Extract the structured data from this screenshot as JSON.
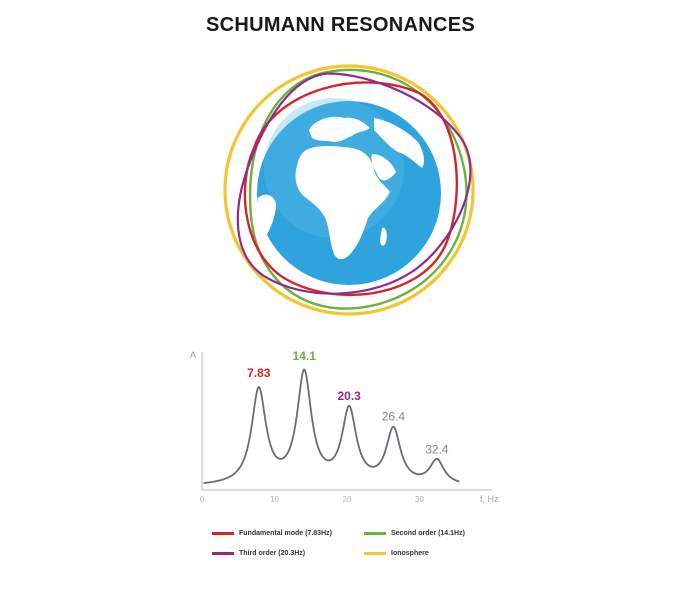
{
  "title": "SCHUMANN RESONANCES",
  "colors": {
    "fundamental": "#d6232a",
    "second": "#6ab23e",
    "third": "#8e2b8e",
    "ionosphere": "#f2c531",
    "ocean": "#2fa3dd",
    "land": "#ffffff",
    "curve": "#666e73",
    "axis": "#b9bec2"
  },
  "chart_data": {
    "type": "line",
    "xlabel": "f, Hz",
    "ylabel": "A",
    "xlim": [
      0,
      40
    ],
    "x_ticks": [
      0,
      10,
      20,
      30
    ],
    "peaks": [
      {
        "freq": 7.83,
        "label": "7.83",
        "amplitude": 0.9,
        "color": "#d6232a"
      },
      {
        "freq": 14.1,
        "label": "14.1",
        "amplitude": 1.05,
        "color": "#6ab23e"
      },
      {
        "freq": 20.3,
        "label": "20.3",
        "amplitude": 0.7,
        "color": "#8e2b8e"
      },
      {
        "freq": 26.4,
        "label": "26.4",
        "amplitude": 0.52,
        "color": "#888888"
      },
      {
        "freq": 32.4,
        "label": "32.4",
        "amplitude": 0.23,
        "color": "#888888"
      }
    ]
  },
  "legend": [
    {
      "label": "Fundamental mode (7.83Hz)",
      "color": "#d6232a"
    },
    {
      "label": "Second order (14.1Hz)",
      "color": "#6ab23e"
    },
    {
      "label": "Third order (20.3Hz)",
      "color": "#8e2b8e"
    },
    {
      "label": "Ionosphere",
      "color": "#f2c531"
    }
  ]
}
